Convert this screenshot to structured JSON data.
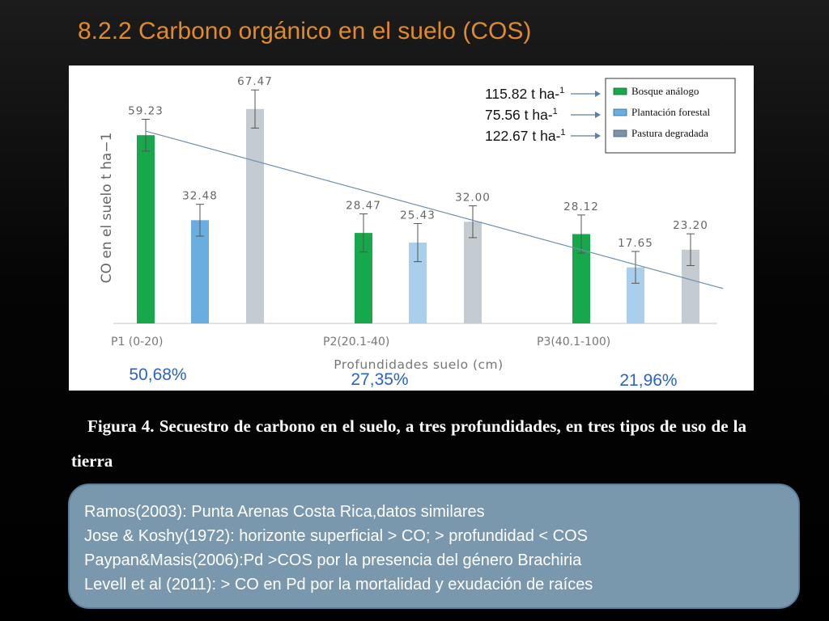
{
  "slide": {
    "title": "8.2.2 Carbono orgánico en el suelo (COS)"
  },
  "colors": {
    "title": "#e08a2c",
    "bosque": "#16a84a",
    "plantacion": "#6aaee0",
    "plantacion_light": "#a9cfec",
    "pastura": "#c5ccd1",
    "trend_line": "#6f8fb0",
    "percent_text": "#2a62c6",
    "notes_bg": "#7a98ad"
  },
  "totals": {
    "items": [
      {
        "value": "115.82 t ha-",
        "sup": "1"
      },
      {
        "value": "75.56 t ha-",
        "sup": "1"
      },
      {
        "value": "122.67 t ha-",
        "sup": "1"
      }
    ]
  },
  "chart_data": {
    "type": "bar",
    "xlabel": "Profundidades suelo (cm)",
    "ylabel": "CO  en el suelo t ha−1",
    "categories": [
      "P1 (0-20)",
      "P2(20.1-40)",
      "P3(40.1-100)"
    ],
    "series": [
      {
        "name": "Bosque análogo",
        "values": [
          59.23,
          28.47,
          28.12
        ],
        "labels": [
          "59.23",
          "28.47",
          "28.12"
        ]
      },
      {
        "name": "Plantación forestal",
        "values": [
          32.48,
          25.43,
          17.65
        ],
        "labels": [
          "32.48",
          "25.43",
          "17.65"
        ]
      },
      {
        "name": "Pastura degradada",
        "values": [
          67.47,
          32.0,
          23.2
        ],
        "labels": [
          "67.47",
          "32.00",
          "23.20"
        ]
      }
    ],
    "error_bars": {
      "Bosque análogo": [
        5,
        6,
        6
      ],
      "Plantación forestal": [
        5,
        6,
        5
      ],
      "Pastura degradada": [
        6,
        5,
        5
      ]
    },
    "trendline": {
      "start": 60.5,
      "end": 11.0
    },
    "percentages": [
      "50,68%",
      "27,35%",
      "21,96%"
    ],
    "ylim": [
      0,
      72
    ],
    "legend_position": "top-right",
    "grid": false
  },
  "caption": {
    "text": "Figura  4. Secuestro de carbono en el suelo, a tres profundidades, en tres tipos    de uso de la tierra"
  },
  "notes": {
    "lines": [
      "Ramos(2003): Punta Arenas Costa Rica,datos similares",
      "Jose & Koshy(1972): horizonte superficial > CO; > profundidad < COS",
      "Paypan&Masis(2006):Pd >COS por la presencia del género Brachiria",
      "Levell et al (2011): > CO en Pd por la mortalidad y exudación de raíces"
    ]
  }
}
